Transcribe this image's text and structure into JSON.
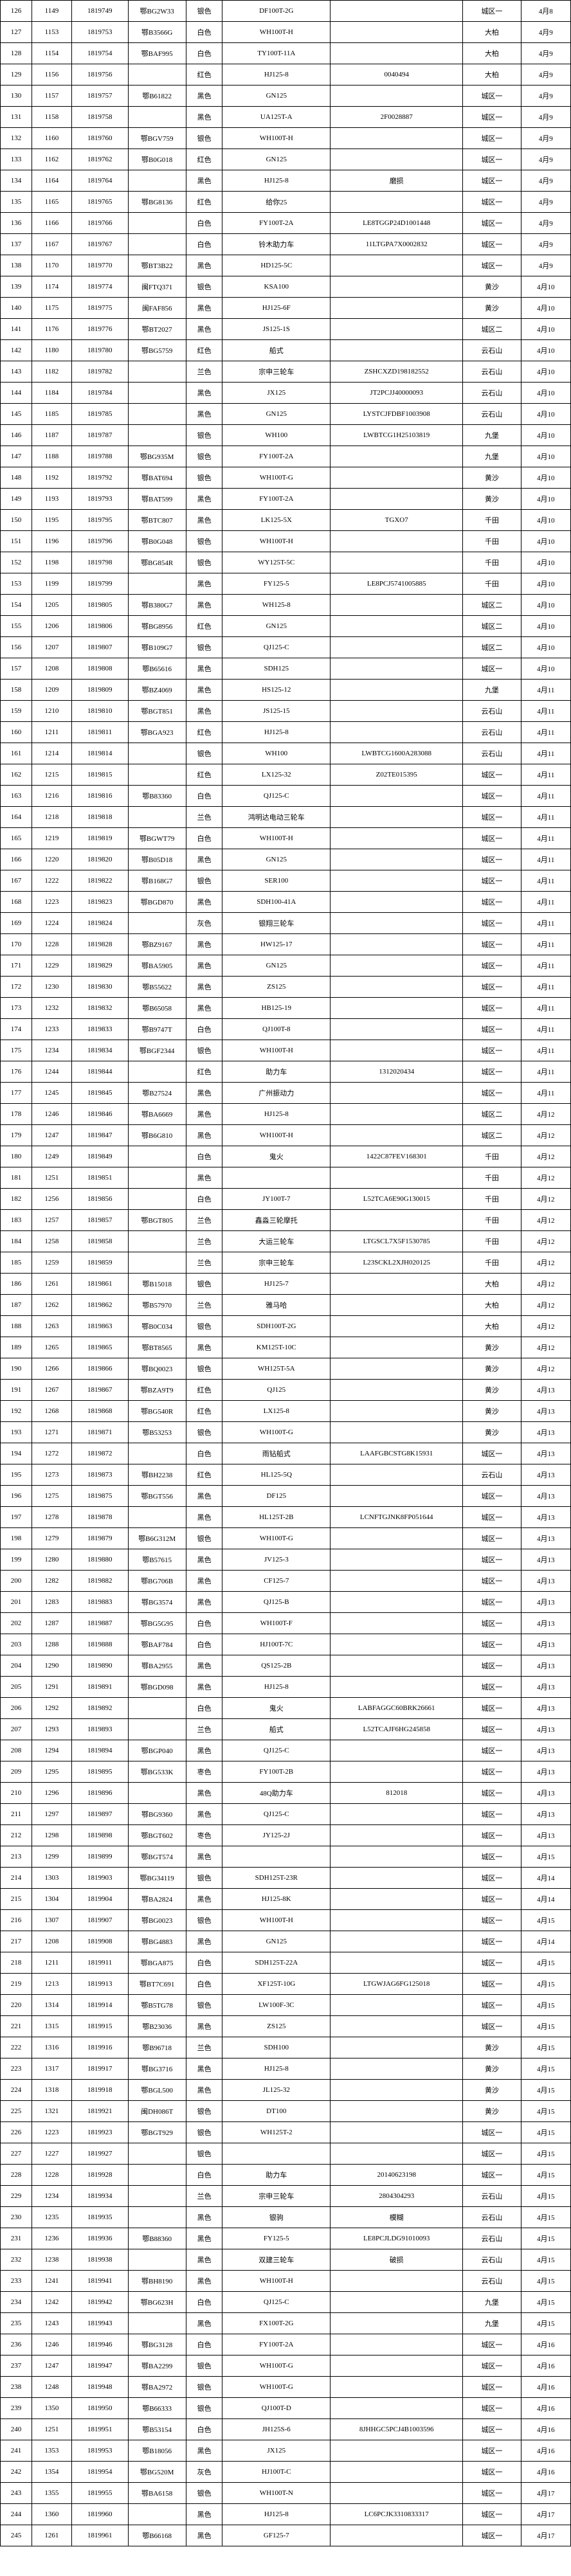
{
  "rows": [
    [
      "126",
      "1149",
      "1819749",
      "鄂BG2W33",
      "银色",
      "DF100T-2G",
      "",
      "城区一",
      "4月8"
    ],
    [
      "127",
      "1153",
      "1819753",
      "鄂B3566G",
      "白色",
      "WH100T-H",
      "",
      "大柏",
      "4月9"
    ],
    [
      "128",
      "1154",
      "1819754",
      "鄂BAF995",
      "白色",
      "TY100T-11A",
      "",
      "大柏",
      "4月9"
    ],
    [
      "129",
      "1156",
      "1819756",
      "",
      "红色",
      "HJ125-8",
      "0040494",
      "大柏",
      "4月9"
    ],
    [
      "130",
      "1157",
      "1819757",
      "鄂B61822",
      "黑色",
      "GN125",
      "",
      "城区一",
      "4月9"
    ],
    [
      "131",
      "1158",
      "1819758",
      "",
      "黑色",
      "UA125T-A",
      "2F0028887",
      "城区一",
      "4月9"
    ],
    [
      "132",
      "1160",
      "1819760",
      "鄂BGV759",
      "银色",
      "WH100T-H",
      "",
      "城区一",
      "4月9"
    ],
    [
      "133",
      "1162",
      "1819762",
      "鄂B0G018",
      "红色",
      "GN125",
      "",
      "城区一",
      "4月9"
    ],
    [
      "134",
      "1164",
      "1819764",
      "",
      "黑色",
      "HJ125-8",
      "磨损",
      "城区一",
      "4月9"
    ],
    [
      "135",
      "1165",
      "1819765",
      "鄂BG8136",
      "红色",
      "给你25",
      "",
      "城区一",
      "4月9"
    ],
    [
      "136",
      "1166",
      "1819766",
      "",
      "白色",
      "FY100T-2A",
      "LE8TGGP24D1001448",
      "城区一",
      "4月9"
    ],
    [
      "137",
      "1167",
      "1819767",
      "",
      "白色",
      "铃木助力车",
      "11LTGPA7X0002832",
      "城区一",
      "4月9"
    ],
    [
      "138",
      "1170",
      "1819770",
      "鄂BT3B22",
      "黑色",
      "HD125-5C",
      "",
      "城区一",
      "4月9"
    ],
    [
      "139",
      "1174",
      "1819774",
      "闽FTQ371",
      "银色",
      "KSA100",
      "",
      "黄沙",
      "4月10"
    ],
    [
      "140",
      "1175",
      "1819775",
      "闽FAF856",
      "黑色",
      "HJ125-6F",
      "",
      "黄沙",
      "4月10"
    ],
    [
      "141",
      "1176",
      "1819776",
      "鄂BT2027",
      "黑色",
      "JS125-1S",
      "",
      "城区二",
      "4月10"
    ],
    [
      "142",
      "1180",
      "1819780",
      "鄂BG5759",
      "红色",
      "船式",
      "",
      "云石山",
      "4月10"
    ],
    [
      "143",
      "1182",
      "1819782",
      "",
      "兰色",
      "宗申三轮车",
      "ZSHCXZD198182552",
      "云石山",
      "4月10"
    ],
    [
      "144",
      "1184",
      "1819784",
      "",
      "黑色",
      "JX125",
      "JT2PCJJ40000093",
      "云石山",
      "4月10"
    ],
    [
      "145",
      "1185",
      "1819785",
      "",
      "黑色",
      "GN125",
      "LYSTCJFDBF1003908",
      "云石山",
      "4月10"
    ],
    [
      "146",
      "1187",
      "1819787",
      "",
      "银色",
      "WH100",
      "LWBTCG1H25103819",
      "九堡",
      "4月10"
    ],
    [
      "147",
      "1188",
      "1819788",
      "鄂BG935M",
      "银色",
      "FY100T-2A",
      "",
      "九堡",
      "4月10"
    ],
    [
      "148",
      "1192",
      "1819792",
      "鄂BAT694",
      "银色",
      "WH100T-G",
      "",
      "黄沙",
      "4月10"
    ],
    [
      "149",
      "1193",
      "1819793",
      "鄂BAT599",
      "黑色",
      "FY100T-2A",
      "",
      "黄沙",
      "4月10"
    ],
    [
      "150",
      "1195",
      "1819795",
      "鄂BTC807",
      "黑色",
      "LK125-5X",
      "TGXO7",
      "千田",
      "4月10"
    ],
    [
      "151",
      "1196",
      "1819796",
      "鄂B0G048",
      "银色",
      "WH100T-H",
      "",
      "千田",
      "4月10"
    ],
    [
      "152",
      "1198",
      "1819798",
      "鄂BG854R",
      "银色",
      "WY125T-5C",
      "",
      "千田",
      "4月10"
    ],
    [
      "153",
      "1199",
      "1819799",
      "",
      "黑色",
      "FY125-5",
      "LE8PCJ5741005885",
      "千田",
      "4月10"
    ],
    [
      "154",
      "1205",
      "1819805",
      "鄂B380G7",
      "黑色",
      "WH125-8",
      "",
      "城区二",
      "4月10"
    ],
    [
      "155",
      "1206",
      "1819806",
      "鄂BG8956",
      "红色",
      "GN125",
      "",
      "城区二",
      "4月10"
    ],
    [
      "156",
      "1207",
      "1819807",
      "鄂B109G7",
      "银色",
      "QJ125-C",
      "",
      "城区二",
      "4月10"
    ],
    [
      "157",
      "1208",
      "1819808",
      "鄂B65616",
      "黑色",
      "SDH125",
      "",
      "城区一",
      "4月10"
    ],
    [
      "158",
      "1209",
      "1819809",
      "鄂BZ4069",
      "黑色",
      "HS125-12",
      "",
      "九堡",
      "4月11"
    ],
    [
      "159",
      "1210",
      "1819810",
      "鄂BGT851",
      "黑色",
      "JS125-15",
      "",
      "云石山",
      "4月11"
    ],
    [
      "160",
      "1211",
      "1819811",
      "鄂BGA923",
      "红色",
      "HJ125-8",
      "",
      "云石山",
      "4月11"
    ],
    [
      "161",
      "1214",
      "1819814",
      "",
      "银色",
      "WH100",
      "LWBTCG1600A283088",
      "云石山",
      "4月11"
    ],
    [
      "162",
      "1215",
      "1819815",
      "",
      "红色",
      "LX125-32",
      "Z02TE015395",
      "城区一",
      "4月11"
    ],
    [
      "163",
      "1216",
      "1819816",
      "鄂B83360",
      "白色",
      "QJ125-C",
      "",
      "城区一",
      "4月11"
    ],
    [
      "164",
      "1218",
      "1819818",
      "",
      "兰色",
      "鸿明达电动三轮车",
      "",
      "城区一",
      "4月11"
    ],
    [
      "165",
      "1219",
      "1819819",
      "鄂BGWT79",
      "白色",
      "WH100T-H",
      "",
      "城区一",
      "4月11"
    ],
    [
      "166",
      "1220",
      "1819820",
      "鄂B05D18",
      "黑色",
      "GN125",
      "",
      "城区一",
      "4月11"
    ],
    [
      "167",
      "1222",
      "1819822",
      "鄂B168G7",
      "银色",
      "SER100",
      "",
      "城区一",
      "4月11"
    ],
    [
      "168",
      "1223",
      "1819823",
      "鄂BGD870",
      "黑色",
      "SDH100-41A",
      "",
      "城区一",
      "4月11"
    ],
    [
      "169",
      "1224",
      "1819824",
      "",
      "灰色",
      "银翔三轮车",
      "",
      "城区一",
      "4月11"
    ],
    [
      "170",
      "1228",
      "1819828",
      "鄂BZ9167",
      "黑色",
      "HW125-17",
      "",
      "城区一",
      "4月11"
    ],
    [
      "171",
      "1229",
      "1819829",
      "鄂BA5905",
      "黑色",
      "GN125",
      "",
      "城区一",
      "4月11"
    ],
    [
      "172",
      "1230",
      "1819830",
      "鄂B55622",
      "黑色",
      "ZS125",
      "",
      "城区一",
      "4月11"
    ],
    [
      "173",
      "1232",
      "1819832",
      "鄂B65058",
      "黑色",
      "HB125-19",
      "",
      "城区一",
      "4月11"
    ],
    [
      "174",
      "1233",
      "1819833",
      "鄂B9747T",
      "白色",
      "QJ100T-8",
      "",
      "城区一",
      "4月11"
    ],
    [
      "175",
      "1234",
      "1819834",
      "鄂BGF2344",
      "银色",
      "WH100T-H",
      "",
      "城区一",
      "4月11"
    ],
    [
      "176",
      "1244",
      "1819844",
      "",
      "红色",
      "助力车",
      "1312020434",
      "城区一",
      "4月11"
    ],
    [
      "177",
      "1245",
      "1819845",
      "鄂B27524",
      "黑色",
      "广州振动力",
      "",
      "城区一",
      "4月11"
    ],
    [
      "178",
      "1246",
      "1819846",
      "鄂BA6669",
      "黑色",
      "HJ125-8",
      "",
      "城区二",
      "4月12"
    ],
    [
      "179",
      "1247",
      "1819847",
      "鄂B6G810",
      "黑色",
      "WH100T-H",
      "",
      "城区二",
      "4月12"
    ],
    [
      "180",
      "1249",
      "1819849",
      "",
      "白色",
      "鬼火",
      "1422C87FEV168301",
      "千田",
      "4月12"
    ],
    [
      "181",
      "1251",
      "1819851",
      "",
      "黑色",
      "",
      "",
      "千田",
      "4月12"
    ],
    [
      "182",
      "1256",
      "1819856",
      "",
      "白色",
      "JY100T-7",
      "L52TCA6E90G130015",
      "千田",
      "4月12"
    ],
    [
      "183",
      "1257",
      "1819857",
      "鄂BGT805",
      "兰色",
      "鑫淼三轮摩托",
      "",
      "千田",
      "4月12"
    ],
    [
      "184",
      "1258",
      "1819858",
      "",
      "兰色",
      "大运三轮车",
      "LTGSCL7X5F1530785",
      "千田",
      "4月12"
    ],
    [
      "185",
      "1259",
      "1819859",
      "",
      "兰色",
      "宗申三轮车",
      "L23SCKL2XJH020125",
      "千田",
      "4月12"
    ],
    [
      "186",
      "1261",
      "1819861",
      "鄂B15018",
      "银色",
      "HJ125-7",
      "",
      "大柏",
      "4月12"
    ],
    [
      "187",
      "1262",
      "1819862",
      "鄂B57970",
      "兰色",
      "雅马哈",
      "",
      "大柏",
      "4月12"
    ],
    [
      "188",
      "1263",
      "1819863",
      "鄂B0C034",
      "银色",
      "SDH100T-2G",
      "",
      "大柏",
      "4月12"
    ],
    [
      "189",
      "1265",
      "1819865",
      "鄂BT8565",
      "黑色",
      "KM125T-10C",
      "",
      "黄沙",
      "4月12"
    ],
    [
      "190",
      "1266",
      "1819866",
      "鄂BQ0023",
      "银色",
      "WH125T-5A",
      "",
      "黄沙",
      "4月12"
    ],
    [
      "191",
      "1267",
      "1819867",
      "鄂BZA9T9",
      "红色",
      "QJ125",
      "",
      "黄沙",
      "4月13"
    ],
    [
      "192",
      "1268",
      "1819868",
      "鄂BG540R",
      "红色",
      "LX125-8",
      "",
      "黄沙",
      "4月13"
    ],
    [
      "193",
      "1271",
      "1819871",
      "鄂B53253",
      "银色",
      "WH100T-G",
      "",
      "黄沙",
      "4月13"
    ],
    [
      "194",
      "1272",
      "1819872",
      "",
      "白色",
      "雨钻船式",
      "LAAFGBCSTG8K15931",
      "城区一",
      "4月13"
    ],
    [
      "195",
      "1273",
      "1819873",
      "鄂BH2238",
      "红色",
      "HL125-5Q",
      "",
      "云石山",
      "4月13"
    ],
    [
      "196",
      "1275",
      "1819875",
      "鄂BGT556",
      "黑色",
      "DF125",
      "",
      "城区一",
      "4月13"
    ],
    [
      "197",
      "1278",
      "1819878",
      "",
      "黑色",
      "HL125T-2B",
      "LCNFTGJNK8FP051644",
      "城区一",
      "4月13"
    ],
    [
      "198",
      "1279",
      "1819879",
      "鄂B6G312M",
      "银色",
      "WH100T-G",
      "",
      "城区一",
      "4月13"
    ],
    [
      "199",
      "1280",
      "1819880",
      "鄂B57615",
      "黑色",
      "JV125-3",
      "",
      "城区一",
      "4月13"
    ],
    [
      "200",
      "1282",
      "1819882",
      "鄂BG706B",
      "黑色",
      "CF125-7",
      "",
      "城区一",
      "4月13"
    ],
    [
      "201",
      "1283",
      "1819883",
      "鄂BG3574",
      "黑色",
      "QJ125-B",
      "",
      "城区一",
      "4月13"
    ],
    [
      "202",
      "1287",
      "1819887",
      "鄂BG5G95",
      "白色",
      "WH100T-F",
      "",
      "城区一",
      "4月13"
    ],
    [
      "203",
      "1288",
      "1819888",
      "鄂BAF784",
      "白色",
      "HJ100T-7C",
      "",
      "城区一",
      "4月13"
    ],
    [
      "204",
      "1290",
      "1819890",
      "鄂BA2955",
      "黑色",
      "QS125-2B",
      "",
      "城区一",
      "4月13"
    ],
    [
      "205",
      "1291",
      "1819891",
      "鄂BGD098",
      "黑色",
      "HJ125-8",
      "",
      "城区一",
      "4月13"
    ],
    [
      "206",
      "1292",
      "1819892",
      "",
      "白色",
      "鬼火",
      "LABFAGGC60BRK26661",
      "城区一",
      "4月13"
    ],
    [
      "207",
      "1293",
      "1819893",
      "",
      "兰色",
      "船式",
      "L52TCAJF6HG245858",
      "城区一",
      "4月13"
    ],
    [
      "208",
      "1294",
      "1819894",
      "鄂BGP040",
      "黑色",
      "QJ125-C",
      "",
      "城区一",
      "4月13"
    ],
    [
      "209",
      "1295",
      "1819895",
      "鄂BG533K",
      "栆色",
      "FY100T-2B",
      "",
      "城区一",
      "4月13"
    ],
    [
      "210",
      "1296",
      "1819896",
      "",
      "黑色",
      "48Q助力车",
      "812018",
      "城区一",
      "4月13"
    ],
    [
      "211",
      "1297",
      "1819897",
      "鄂BG9360",
      "黑色",
      "QJ125-C",
      "",
      "城区一",
      "4月13"
    ],
    [
      "212",
      "1298",
      "1819898",
      "鄂BGT602",
      "栆色",
      "JY125-2J",
      "",
      "城区一",
      "4月13"
    ],
    [
      "213",
      "1299",
      "1819899",
      "鄂BGT574",
      "黑色",
      "",
      "",
      "城区一",
      "4月15"
    ],
    [
      "214",
      "1303",
      "1819903",
      "鄂BG34119",
      "银色",
      "SDH125T-23R",
      "",
      "城区一",
      "4月14"
    ],
    [
      "215",
      "1304",
      "1819904",
      "鄂BA2824",
      "黑色",
      "HJ125-8K",
      "",
      "城区一",
      "4月14"
    ],
    [
      "216",
      "1307",
      "1819907",
      "鄂BG0023",
      "银色",
      "WH100T-H",
      "",
      "城区一",
      "4月15"
    ],
    [
      "217",
      "1208",
      "1819908",
      "鄂BG4883",
      "黑色",
      "GN125",
      "",
      "城区一",
      "4月14"
    ],
    [
      "218",
      "1211",
      "1819911",
      "鄂BGA875",
      "白色",
      "SDH125T-22A",
      "",
      "城区一",
      "4月15"
    ],
    [
      "219",
      "1213",
      "1819913",
      "鄂BT7C691",
      "白色",
      "XF125T-10G",
      "LTGWJAG6FG125018",
      "城区一",
      "4月15"
    ],
    [
      "220",
      "1314",
      "1819914",
      "鄂B5TG78",
      "银色",
      "LW100F-3C",
      "",
      "城区一",
      "4月15"
    ],
    [
      "221",
      "1315",
      "1819915",
      "鄂B23036",
      "黑色",
      "ZS125",
      "",
      "城区一",
      "4月15"
    ],
    [
      "222",
      "1316",
      "1819916",
      "鄂B96718",
      "兰色",
      "SDH100",
      "",
      "黄沙",
      "4月15"
    ],
    [
      "223",
      "1317",
      "1819917",
      "鄂BG3716",
      "黑色",
      "HJ125-8",
      "",
      "黄沙",
      "4月15"
    ],
    [
      "224",
      "1318",
      "1819918",
      "鄂BGL500",
      "黑色",
      "JL125-32",
      "",
      "黄沙",
      "4月15"
    ],
    [
      "225",
      "1321",
      "1819921",
      "闽DH086T",
      "银色",
      "DT100",
      "",
      "黄沙",
      "4月15"
    ],
    [
      "226",
      "1223",
      "1819923",
      "鄂BGT929",
      "银色",
      "WH125T-2",
      "",
      "城区一",
      "4月15"
    ],
    [
      "227",
      "1227",
      "1819927",
      "",
      "银色",
      "",
      "",
      "城区一",
      "4月15"
    ],
    [
      "228",
      "1228",
      "1819928",
      "",
      "白色",
      "助力车",
      "20140623198",
      "城区一",
      "4月15"
    ],
    [
      "229",
      "1234",
      "1819934",
      "",
      "兰色",
      "宗申三轮车",
      "2804304293",
      "云石山",
      "4月15"
    ],
    [
      "230",
      "1235",
      "1819935",
      "",
      "黑色",
      "银驹",
      "模糊",
      "云石山",
      "4月15"
    ],
    [
      "231",
      "1236",
      "1819936",
      "鄂B88360",
      "黑色",
      "FY125-5",
      "LE8PCJLDG91010093",
      "云石山",
      "4月15"
    ],
    [
      "232",
      "1238",
      "1819938",
      "",
      "黑色",
      "双建三轮车",
      "破损",
      "云石山",
      "4月15"
    ],
    [
      "233",
      "1241",
      "1819941",
      "鄂BH8190",
      "黑色",
      "WH100T-H",
      "",
      "云石山",
      "4月15"
    ],
    [
      "234",
      "1242",
      "1819942",
      "鄂BG623H",
      "白色",
      "QJ125-C",
      "",
      "九堡",
      "4月15"
    ],
    [
      "235",
      "1243",
      "1819943",
      "",
      "黑色",
      "FX100T-2G",
      "",
      "九堡",
      "4月15"
    ],
    [
      "236",
      "1246",
      "1819946",
      "鄂BG3128",
      "白色",
      "FY100T-2A",
      "",
      "城区一",
      "4月16"
    ],
    [
      "237",
      "1247",
      "1819947",
      "鄂BA2299",
      "银色",
      "WH100T-G",
      "",
      "城区一",
      "4月16"
    ],
    [
      "238",
      "1248",
      "1819948",
      "鄂BA2972",
      "银色",
      "WH100T-G",
      "",
      "城区一",
      "4月16"
    ],
    [
      "239",
      "1350",
      "1819950",
      "鄂B66333",
      "银色",
      "QJ100T-D",
      "",
      "城区一",
      "4月16"
    ],
    [
      "240",
      "1251",
      "1819951",
      "鄂B53154",
      "白色",
      "JH125S-6",
      "8JHHGC5PCJ4B1003596",
      "城区一",
      "4月16"
    ],
    [
      "241",
      "1353",
      "1819953",
      "鄂B18056",
      "黑色",
      "JX125",
      "",
      "城区一",
      "4月16"
    ],
    [
      "242",
      "1354",
      "1819954",
      "鄂BG520M",
      "灰色",
      "HJ100T-C",
      "",
      "城区一",
      "4月16"
    ],
    [
      "243",
      "1355",
      "1819955",
      "鄂BA6158",
      "银色",
      "WH100T-N",
      "",
      "城区一",
      "4月17"
    ],
    [
      "244",
      "1360",
      "1819960",
      "",
      "黑色",
      "HJ125-8",
      "LC6PCJK3310833317",
      "城区一",
      "4月17"
    ],
    [
      "245",
      "1261",
      "1819961",
      "鄂B66168",
      "黑色",
      "GF125-7",
      "",
      "城区一",
      "4月17"
    ]
  ]
}
